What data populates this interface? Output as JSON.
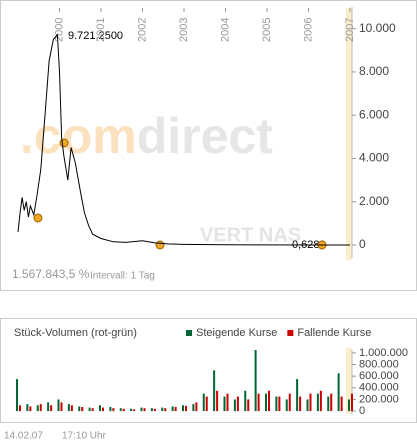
{
  "chart_data": [
    {
      "type": "line",
      "x": [
        1999.0,
        1999.05,
        1999.1,
        1999.15,
        1999.2,
        1999.25,
        1999.3,
        1999.38,
        1999.45,
        1999.55,
        1999.65,
        1999.75,
        1999.85,
        1999.95,
        2000.0,
        2000.05,
        2000.1,
        2000.2,
        2000.28,
        2000.38,
        2000.5,
        2000.6,
        2000.7,
        2000.8,
        2001.0,
        2001.3,
        2001.6,
        2002.0,
        2002.3,
        2002.6,
        2003.0,
        2004.0,
        2005.0,
        2006.0,
        2006.75,
        2007.0
      ],
      "series": [
        {
          "color": "#000000",
          "values": [
            600,
            1500,
            2200,
            1600,
            2000,
            1300,
            1800,
            1400,
            2200,
            3500,
            6000,
            8500,
            9500,
            9721.25,
            8000,
            5000,
            4200,
            3000,
            4500,
            3800,
            2500,
            1500,
            900,
            500,
            300,
            150,
            120,
            200,
            100,
            50,
            30,
            10,
            5,
            2,
            0.628,
            1
          ]
        }
      ],
      "xlim": [
        1999,
        2007
      ],
      "xticks": [
        2000,
        2001,
        2002,
        2003,
        2004,
        2005,
        2006,
        2007
      ],
      "ylim": [
        -600,
        11000
      ],
      "yticks": [
        0,
        {
          "value": 2000,
          "label": "2.000"
        },
        {
          "value": 4000,
          "label": "4.000"
        },
        {
          "value": 6000,
          "label": "6.000"
        },
        {
          "value": 8000,
          "label": "8.000"
        },
        {
          "value": 10000,
          "label": "10.000"
        }
      ],
      "annotations": [
        "9.721,2500",
        "0,6280"
      ],
      "performance": "1.567.843,5 %",
      "interval": "Intervall: 1 Tag",
      "watermark_prefix": ".com",
      "watermark": "direct",
      "watermark_symbol": "VERT NAS"
    },
    {
      "type": "bar",
      "title": "Stück-Volumen (rot-grün)",
      "x": [
        1999.0,
        1999.25,
        1999.5,
        1999.75,
        2000.0,
        2000.25,
        2000.5,
        2000.75,
        2001.0,
        2001.25,
        2001.5,
        2001.75,
        2002.0,
        2002.25,
        2002.5,
        2002.75,
        2003.0,
        2003.25,
        2003.5,
        2003.75,
        2004.0,
        2004.25,
        2004.5,
        2004.75,
        2005.0,
        2005.25,
        2005.5,
        2005.75,
        2006.0,
        2006.25,
        2006.5,
        2006.75,
        2007.0
      ],
      "series": [
        {
          "name": "Steigende Kurse",
          "color": "#006633",
          "values": [
            550000,
            120000,
            100000,
            150000,
            200000,
            120000,
            80000,
            60000,
            100000,
            70000,
            50000,
            40000,
            60000,
            50000,
            60000,
            80000,
            100000,
            120000,
            300000,
            700000,
            250000,
            200000,
            350000,
            1050000,
            300000,
            250000,
            200000,
            550000,
            200000,
            300000,
            250000,
            650000,
            200000
          ]
        },
        {
          "name": "Fallende Kurse",
          "color": "#cc0000",
          "values": [
            100000,
            80000,
            120000,
            100000,
            150000,
            100000,
            70000,
            50000,
            60000,
            50000,
            40000,
            30000,
            50000,
            40000,
            50000,
            70000,
            90000,
            150000,
            250000,
            350000,
            300000,
            250000,
            200000,
            300000,
            350000,
            250000,
            300000,
            250000,
            300000,
            350000,
            300000,
            250000,
            300000
          ]
        }
      ],
      "xlim": [
        1999,
        2007
      ],
      "ylim": [
        -50000,
        1050000
      ],
      "yticks": [
        0,
        {
          "value": 200000,
          "label": "200.000"
        },
        {
          "value": 400000,
          "label": "400.000"
        },
        {
          "value": 600000,
          "label": "600.000"
        },
        {
          "value": 800000,
          "label": "800.000"
        },
        {
          "value": 1000000,
          "label": "1.000.000"
        }
      ]
    }
  ],
  "footer": {
    "date": "14.02.07",
    "time": "17:10 Uhr"
  }
}
